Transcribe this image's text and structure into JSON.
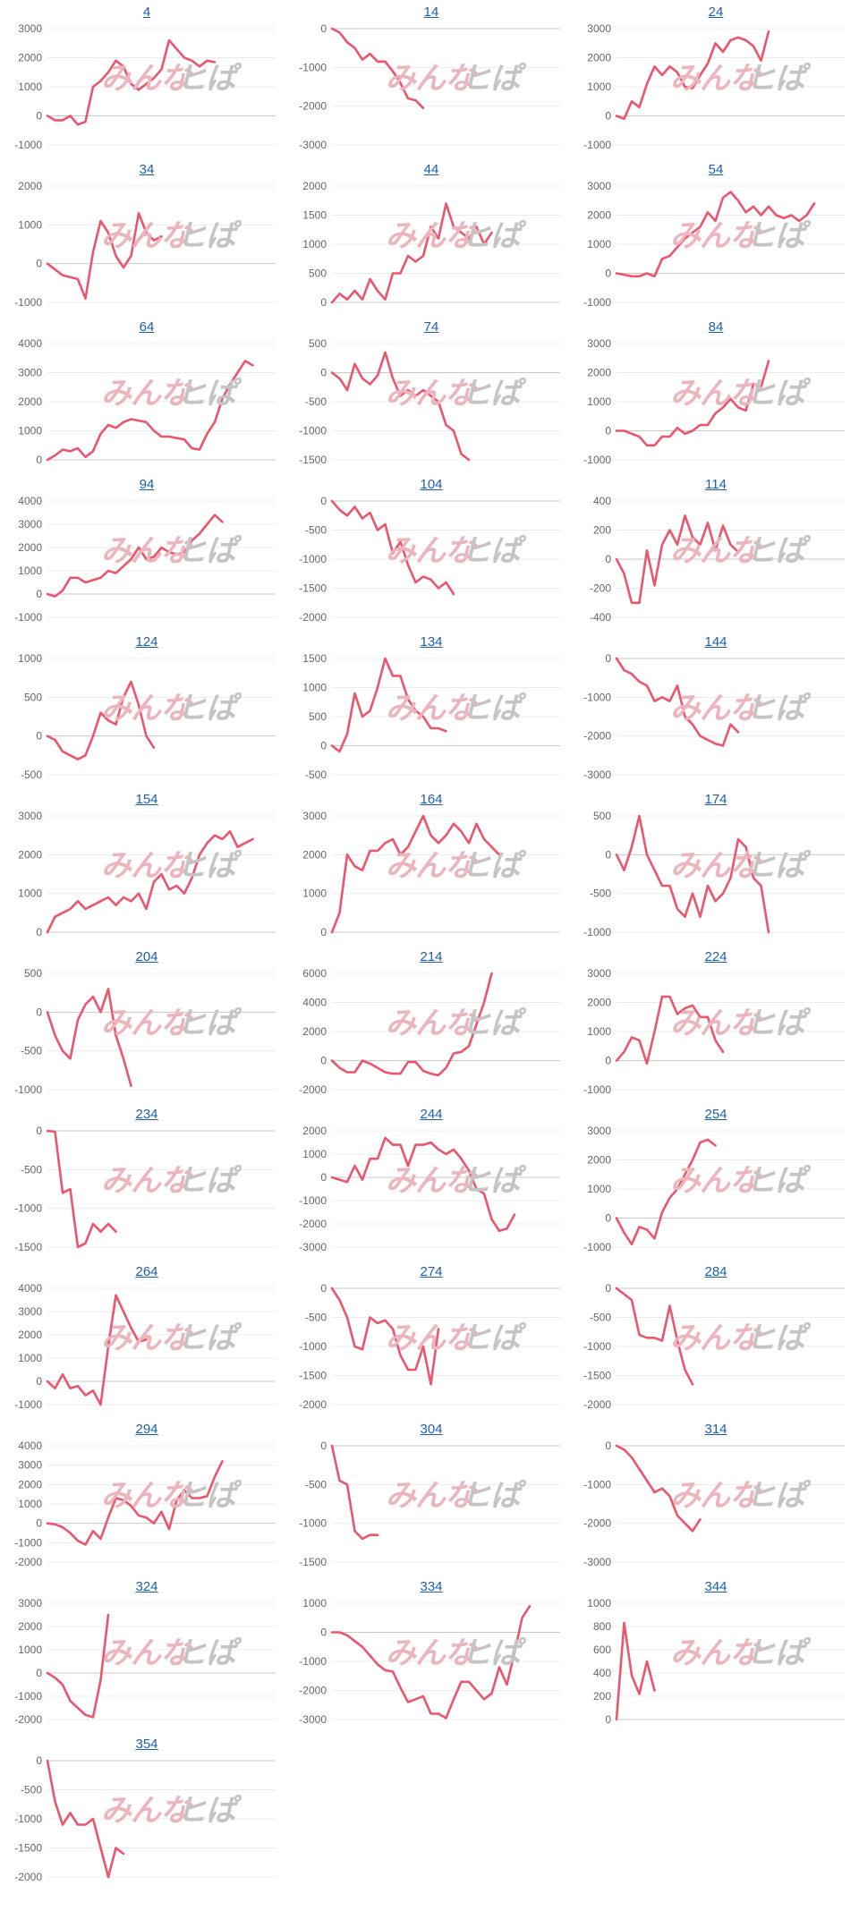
{
  "colors": {
    "line": "#e9566e",
    "title": "#1f5faa",
    "tick": "#666666",
    "zero_axis": "#c8c8c8",
    "grid": "#ececec",
    "watermark_pink": "#ecb4bc",
    "watermark_gray": "#c4c4c4"
  },
  "watermark": {
    "left": "みんな",
    "right": "ヒぱ"
  },
  "chart_data": [
    {
      "type": "line",
      "title": "4",
      "yticks": [
        3000,
        2000,
        1000,
        0,
        -1000
      ],
      "values": [
        0,
        -150,
        -150,
        0,
        -300,
        -200,
        1000,
        1200,
        1500,
        1900,
        1700,
        1100,
        900,
        1100,
        1300,
        1600,
        2600,
        2300,
        2000,
        1900,
        1700,
        1900,
        1850
      ]
    },
    {
      "type": "line",
      "title": "14",
      "yticks": [
        0,
        -1000,
        -2000,
        -3000
      ],
      "values": [
        0,
        -100,
        -350,
        -500,
        -800,
        -650,
        -850,
        -850,
        -1100,
        -1400,
        -1800,
        -1850,
        -2050
      ]
    },
    {
      "type": "line",
      "title": "24",
      "yticks": [
        3000,
        2000,
        1000,
        0,
        -1000
      ],
      "values": [
        0,
        -100,
        500,
        300,
        1100,
        1700,
        1400,
        1700,
        1500,
        1000,
        950,
        1400,
        1800,
        2500,
        2200,
        2600,
        2700,
        2600,
        2400,
        1900,
        2900
      ]
    },
    {
      "type": "line",
      "title": "34",
      "yticks": [
        2000,
        1000,
        0,
        -1000
      ],
      "values": [
        0,
        -150,
        -300,
        -350,
        -400,
        -900,
        300,
        1100,
        800,
        200,
        -100,
        200,
        1300,
        800,
        600,
        700
      ]
    },
    {
      "type": "line",
      "title": "44",
      "yticks": [
        2000,
        1500,
        1000,
        500,
        0
      ],
      "values": [
        0,
        150,
        50,
        200,
        50,
        400,
        200,
        50,
        500,
        500,
        800,
        700,
        800,
        1300,
        1100,
        1700,
        1300,
        1200,
        1100,
        1300,
        1000,
        1200
      ]
    },
    {
      "type": "line",
      "title": "54",
      "yticks": [
        3000,
        2000,
        1000,
        0,
        -1000
      ],
      "values": [
        0,
        -50,
        -100,
        -100,
        0,
        -100,
        500,
        600,
        900,
        1200,
        1400,
        1600,
        2100,
        1800,
        2600,
        2800,
        2500,
        2100,
        2300,
        2000,
        2300,
        2000,
        1900,
        2000,
        1800,
        2000,
        2400
      ]
    },
    {
      "type": "line",
      "title": "64",
      "yticks": [
        4000,
        3000,
        2000,
        1000,
        0
      ],
      "values": [
        0,
        150,
        350,
        300,
        400,
        100,
        300,
        900,
        1200,
        1100,
        1300,
        1400,
        1350,
        1300,
        1000,
        800,
        800,
        750,
        700,
        400,
        350,
        900,
        1300,
        2100,
        2600,
        3000,
        3400,
        3250
      ]
    },
    {
      "type": "line",
      "title": "74",
      "yticks": [
        500,
        0,
        -500,
        -1000,
        -1500
      ],
      "values": [
        0,
        -100,
        -300,
        150,
        -100,
        -200,
        -50,
        350,
        -100,
        -400,
        -300,
        -400,
        -300,
        -400,
        -500,
        -900,
        -1000,
        -1400,
        -1500
      ]
    },
    {
      "type": "line",
      "title": "84",
      "yticks": [
        3000,
        2000,
        1000,
        0,
        -1000
      ],
      "values": [
        0,
        0,
        -100,
        -200,
        -500,
        -500,
        -200,
        -200,
        100,
        -100,
        0,
        200,
        200,
        600,
        800,
        1100,
        800,
        700,
        1600,
        1500,
        2400
      ]
    },
    {
      "type": "line",
      "title": "94",
      "yticks": [
        4000,
        3000,
        2000,
        1000,
        0,
        -1000
      ],
      "values": [
        0,
        -100,
        150,
        700,
        700,
        500,
        600,
        700,
        1000,
        900,
        1200,
        1500,
        2000,
        1500,
        1600,
        2000,
        1800,
        1700,
        1800,
        2300,
        2600,
        3000,
        3400,
        3100
      ]
    },
    {
      "type": "line",
      "title": "104",
      "yticks": [
        0,
        -500,
        -1000,
        -1500,
        -2000
      ],
      "values": [
        0,
        -150,
        -250,
        -100,
        -300,
        -200,
        -500,
        -400,
        -900,
        -700,
        -1100,
        -1400,
        -1300,
        -1350,
        -1500,
        -1400,
        -1600
      ]
    },
    {
      "type": "line",
      "title": "114",
      "yticks": [
        400,
        200,
        0,
        -200,
        -400
      ],
      "values": [
        0,
        -100,
        -300,
        -300,
        60,
        -180,
        100,
        200,
        100,
        300,
        150,
        100,
        250,
        60,
        230,
        100,
        50
      ]
    },
    {
      "type": "line",
      "title": "124",
      "yticks": [
        1000,
        500,
        0,
        -500
      ],
      "values": [
        0,
        -50,
        -200,
        -250,
        -300,
        -250,
        0,
        300,
        200,
        150,
        500,
        700,
        400,
        0,
        -150
      ]
    },
    {
      "type": "line",
      "title": "134",
      "yticks": [
        1500,
        1000,
        500,
        0,
        -500
      ],
      "values": [
        0,
        -100,
        200,
        900,
        500,
        600,
        1000,
        1500,
        1200,
        1200,
        800,
        600,
        500,
        300,
        300,
        250
      ]
    },
    {
      "type": "line",
      "title": "144",
      "yticks": [
        0,
        -1000,
        -2000,
        -3000
      ],
      "values": [
        0,
        -300,
        -400,
        -600,
        -700,
        -1100,
        -1000,
        -1100,
        -700,
        -1500,
        -1700,
        -2000,
        -2100,
        -2200,
        -2250,
        -1700,
        -1900
      ]
    },
    {
      "type": "line",
      "title": "154",
      "yticks": [
        3000,
        2000,
        1000,
        0
      ],
      "values": [
        0,
        400,
        500,
        600,
        800,
        600,
        700,
        800,
        900,
        700,
        900,
        800,
        1000,
        600,
        1300,
        1500,
        1100,
        1200,
        1000,
        1400,
        2000,
        2300,
        2500,
        2400,
        2600,
        2200,
        2300,
        2400
      ]
    },
    {
      "type": "line",
      "title": "164",
      "yticks": [
        3000,
        2000,
        1000,
        0
      ],
      "values": [
        0,
        500,
        2000,
        1700,
        1600,
        2100,
        2100,
        2300,
        2400,
        2000,
        2200,
        2600,
        3000,
        2500,
        2300,
        2500,
        2800,
        2600,
        2300,
        2800,
        2400,
        2200,
        2000
      ]
    },
    {
      "type": "line",
      "title": "174",
      "yticks": [
        500,
        0,
        -500,
        -1000
      ],
      "values": [
        0,
        -200,
        100,
        500,
        0,
        -200,
        -400,
        -400,
        -700,
        -800,
        -500,
        -800,
        -400,
        -600,
        -500,
        -300,
        200,
        100,
        -300,
        -400,
        -1000
      ]
    },
    {
      "type": "line",
      "title": "204",
      "yticks": [
        500,
        0,
        -500,
        -1000
      ],
      "values": [
        0,
        -300,
        -500,
        -600,
        -100,
        100,
        200,
        0,
        300,
        -300,
        -600,
        -950
      ]
    },
    {
      "type": "line",
      "title": "214",
      "yticks": [
        6000,
        4000,
        2000,
        0,
        -2000
      ],
      "values": [
        0,
        -500,
        -800,
        -800,
        0,
        -200,
        -500,
        -800,
        -900,
        -900,
        -100,
        -100,
        -700,
        -900,
        -1000,
        -500,
        500,
        600,
        1000,
        2500,
        4000,
        6000
      ]
    },
    {
      "type": "line",
      "title": "224",
      "yticks": [
        3000,
        2000,
        1000,
        0,
        -1000
      ],
      "values": [
        0,
        300,
        800,
        700,
        -100,
        1000,
        2200,
        2200,
        1600,
        1800,
        1900,
        1500,
        1500,
        700,
        300
      ]
    },
    {
      "type": "line",
      "title": "234",
      "yticks": [
        0,
        -500,
        -1000,
        -1500
      ],
      "values": [
        0,
        -10,
        -800,
        -750,
        -1500,
        -1450,
        -1200,
        -1300,
        -1200,
        -1300
      ]
    },
    {
      "type": "line",
      "title": "244",
      "yticks": [
        2000,
        1000,
        0,
        -1000,
        -2000,
        -3000
      ],
      "values": [
        0,
        -100,
        -200,
        500,
        -100,
        800,
        800,
        1700,
        1400,
        1400,
        500,
        1400,
        1400,
        1500,
        1200,
        1000,
        1200,
        800,
        300,
        -500,
        -700,
        -1800,
        -2300,
        -2200,
        -1600
      ]
    },
    {
      "type": "line",
      "title": "254",
      "yticks": [
        3000,
        2000,
        1000,
        0,
        -1000
      ],
      "values": [
        0,
        -500,
        -900,
        -300,
        -400,
        -700,
        200,
        700,
        1000,
        1500,
        2000,
        2600,
        2700,
        2500
      ]
    },
    {
      "type": "line",
      "title": "264",
      "yticks": [
        4000,
        3000,
        2000,
        1000,
        0,
        -1000
      ],
      "values": [
        0,
        -300,
        300,
        -300,
        -200,
        -600,
        -400,
        -1000,
        1500,
        3700,
        3000,
        2300,
        1700,
        1800
      ]
    },
    {
      "type": "line",
      "title": "274",
      "yticks": [
        0,
        -500,
        -1000,
        -1500,
        -2000
      ],
      "values": [
        0,
        -200,
        -500,
        -1000,
        -1050,
        -500,
        -600,
        -550,
        -700,
        -1150,
        -1400,
        -1400,
        -1000,
        -1650,
        -700
      ]
    },
    {
      "type": "line",
      "title": "284",
      "yticks": [
        0,
        -500,
        -1000,
        -1500,
        -2000
      ],
      "values": [
        0,
        -100,
        -200,
        -800,
        -850,
        -850,
        -900,
        -300,
        -900,
        -1400,
        -1650
      ]
    },
    {
      "type": "line",
      "title": "294",
      "yticks": [
        4000,
        3000,
        2000,
        1000,
        0,
        -1000,
        -2000
      ],
      "values": [
        0,
        -50,
        -200,
        -500,
        -900,
        -1100,
        -400,
        -800,
        300,
        1300,
        1200,
        900,
        400,
        300,
        0,
        600,
        -300,
        1200,
        1700,
        1300,
        1300,
        1400,
        2400,
        3200
      ]
    },
    {
      "type": "line",
      "title": "304",
      "yticks": [
        0,
        -500,
        -1000,
        -1500
      ],
      "values": [
        0,
        -450,
        -500,
        -1100,
        -1200,
        -1150,
        -1150
      ]
    },
    {
      "type": "line",
      "title": "314",
      "yticks": [
        0,
        -1000,
        -2000,
        -3000
      ],
      "values": [
        0,
        -100,
        -300,
        -600,
        -900,
        -1200,
        -1100,
        -1300,
        -1800,
        -2000,
        -2200,
        -1900
      ]
    },
    {
      "type": "line",
      "title": "324",
      "yticks": [
        3000,
        2000,
        1000,
        0,
        -1000,
        -2000
      ],
      "values": [
        0,
        -200,
        -500,
        -1200,
        -1500,
        -1800,
        -1900,
        -300,
        2500
      ]
    },
    {
      "type": "line",
      "title": "334",
      "yticks": [
        1000,
        0,
        -1000,
        -2000,
        -3000
      ],
      "values": [
        0,
        0,
        -100,
        -300,
        -500,
        -800,
        -1100,
        -1300,
        -1350,
        -1900,
        -2400,
        -2300,
        -2200,
        -2800,
        -2800,
        -2950,
        -2300,
        -1700,
        -1700,
        -2000,
        -2300,
        -2100,
        -1200,
        -1800,
        -700,
        500,
        900
      ]
    },
    {
      "type": "line",
      "title": "344",
      "yticks": [
        1000,
        800,
        600,
        400,
        200,
        0
      ],
      "values": [
        0,
        830,
        380,
        220,
        500,
        250
      ]
    },
    {
      "type": "line",
      "title": "354",
      "yticks": [
        0,
        -500,
        -1000,
        -1500,
        -2000
      ],
      "values": [
        0,
        -700,
        -1100,
        -900,
        -1100,
        -1100,
        -1000,
        -1500,
        -2000,
        -1500,
        -1600
      ]
    }
  ]
}
